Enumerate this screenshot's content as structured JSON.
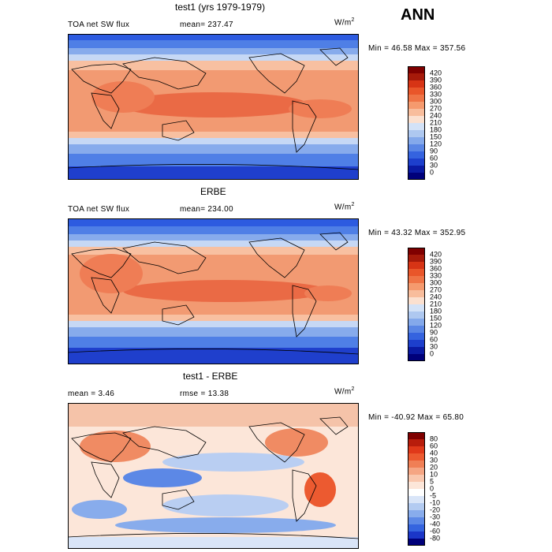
{
  "header": {
    "season": "ANN"
  },
  "panels": [
    {
      "title": "test1 (yrs 1979-1979)",
      "left_label": "TOA net SW flux",
      "mid_label": "mean= 237.47",
      "unit": "W/m",
      "unit_exp": "2",
      "minmax": "Min =  46.58 Max = 357.56",
      "colorbar": {
        "labels": [
          "420",
          "390",
          "360",
          "330",
          "300",
          "270",
          "240",
          "210",
          "180",
          "150",
          "120",
          "90",
          "60",
          "30",
          "0"
        ],
        "colors": [
          "#7f0000",
          "#a61a0a",
          "#d73415",
          "#e9562a",
          "#ef7446",
          "#f59a6e",
          "#f8bd9c",
          "#fbe0cf",
          "#d3e2f7",
          "#aec8f0",
          "#84a9eb",
          "#5a86e5",
          "#3563df",
          "#1d3fcc",
          "#0a1aa3",
          "#00007a"
        ]
      }
    },
    {
      "title": "ERBE",
      "left_label": "TOA net SW flux",
      "mid_label": "mean= 234.00",
      "unit": "W/m",
      "unit_exp": "2",
      "minmax": "Min =  43.32 Max = 352.95",
      "colorbar": {
        "labels": [
          "420",
          "390",
          "360",
          "330",
          "300",
          "270",
          "240",
          "210",
          "180",
          "150",
          "120",
          "90",
          "60",
          "30",
          "0"
        ],
        "colors": [
          "#7f0000",
          "#a61a0a",
          "#d73415",
          "#e9562a",
          "#ef7446",
          "#f59a6e",
          "#f8bd9c",
          "#fbe0cf",
          "#d3e2f7",
          "#aec8f0",
          "#84a9eb",
          "#5a86e5",
          "#3563df",
          "#1d3fcc",
          "#0a1aa3",
          "#00007a"
        ]
      }
    },
    {
      "title": "test1 - ERBE",
      "left_label": "mean =    3.46",
      "mid_label": "rmse =   13.38",
      "unit": "W/m",
      "unit_exp": "2",
      "minmax": "Min = -40.92 Max =   65.80",
      "colorbar": {
        "labels": [
          "80",
          "60",
          "40",
          "30",
          "20",
          "10",
          "5",
          "0",
          "-5",
          "-10",
          "-20",
          "-30",
          "-40",
          "-60",
          "-80"
        ],
        "colors": [
          "#7f0000",
          "#b81d0c",
          "#e0391a",
          "#ec5a30",
          "#f07f55",
          "#f5a583",
          "#f9c7ae",
          "#fce6d9",
          "#ffffff",
          "#d9e5f8",
          "#b3cbf1",
          "#88acec",
          "#5c88e6",
          "#3564df",
          "#1b36c8",
          "#00007a"
        ]
      }
    }
  ]
}
